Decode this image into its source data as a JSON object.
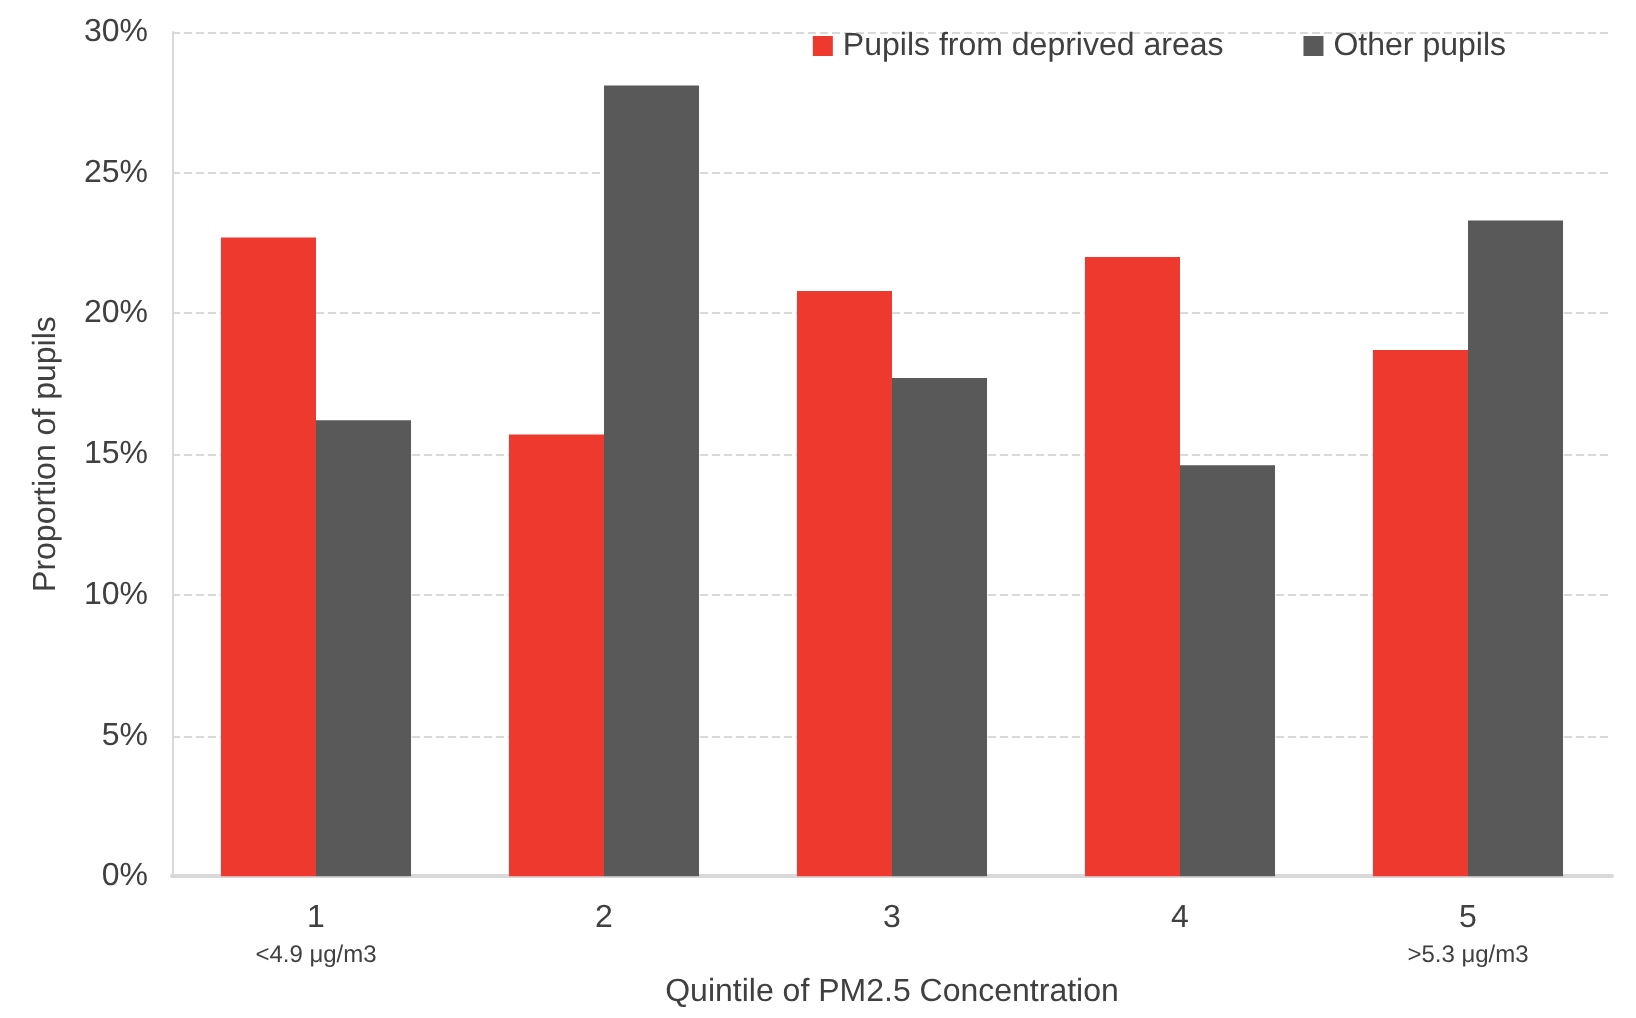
{
  "chart_data": {
    "type": "bar",
    "xlabel": "Quintile of PM2.5 Concentration",
    "ylabel": "Proportion of pupils",
    "categories": [
      "1\n<4.9 μg/m3",
      "2",
      "3",
      "4",
      "5\n>5.3 μg/m3"
    ],
    "series": [
      {
        "name": "Pupils from deprived areas",
        "color": "#ee3a2e",
        "values": [
          22.7,
          15.7,
          20.8,
          22.0,
          18.7
        ]
      },
      {
        "name": "Other pupils",
        "color": "#595959",
        "values": [
          16.2,
          28.1,
          17.7,
          14.6,
          23.3
        ]
      }
    ],
    "ylim": [
      0,
      30
    ],
    "yticks": [
      {
        "value": 0,
        "label": "0%"
      },
      {
        "value": 5,
        "label": "5%"
      },
      {
        "value": 10,
        "label": "10%"
      },
      {
        "value": 15,
        "label": "15%"
      },
      {
        "value": 20,
        "label": "20%"
      },
      {
        "value": 25,
        "label": "25%"
      },
      {
        "value": 30,
        "label": "30%"
      }
    ],
    "grid": "y",
    "legend": "top right"
  }
}
